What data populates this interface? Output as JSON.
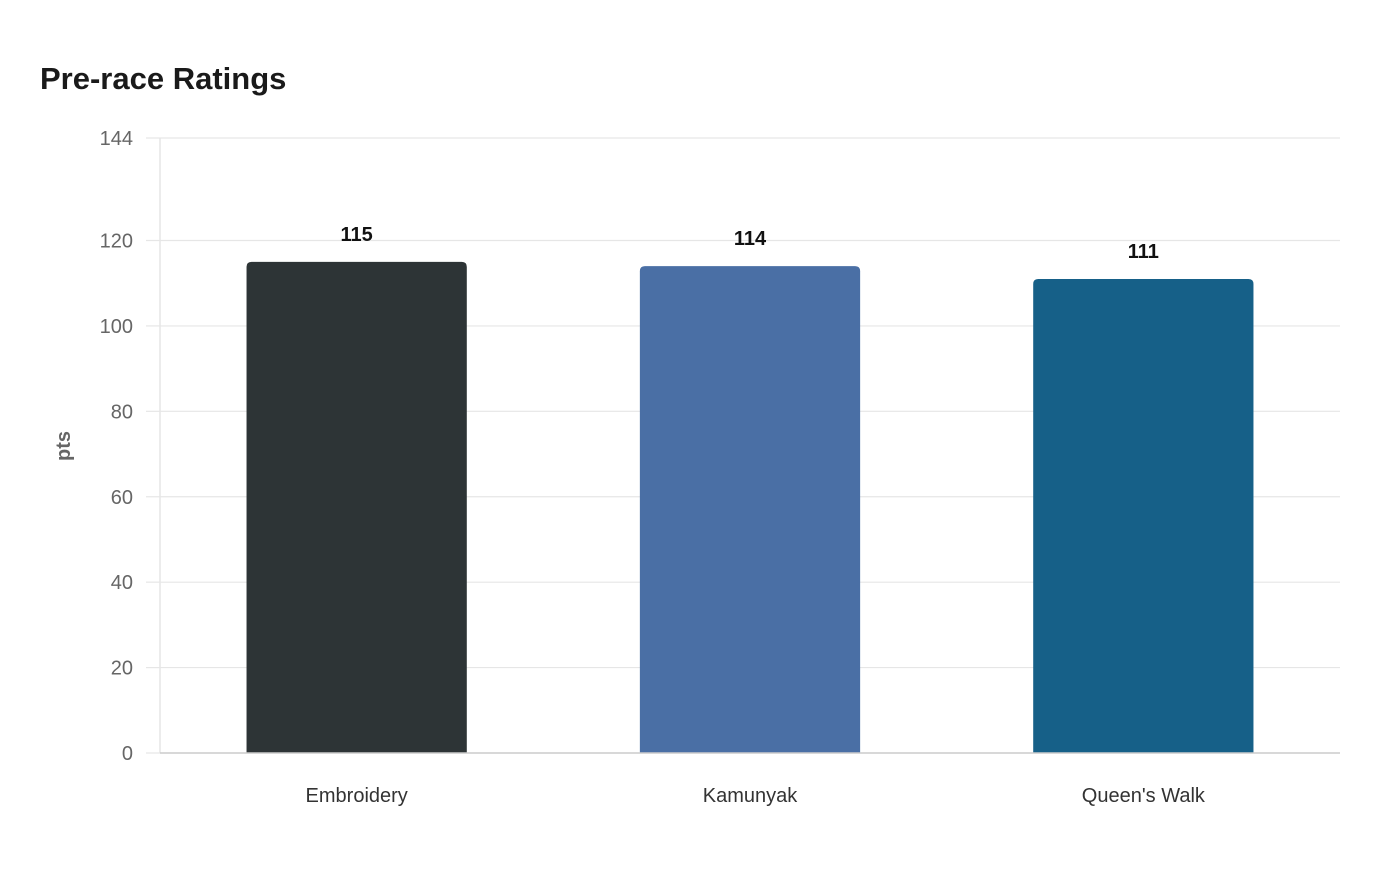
{
  "chart_data": {
    "type": "bar",
    "title": "Pre-race Ratings",
    "xlabel": "",
    "ylabel": "pts",
    "categories": [
      "Embroidery",
      "Kamunyak",
      "Queen's Walk"
    ],
    "values": [
      115,
      114,
      111
    ],
    "value_labels": [
      "115",
      "114",
      "111"
    ],
    "colors": [
      "#2d3436",
      "#4a6fa5",
      "#166088"
    ],
    "ylim": [
      0,
      144
    ],
    "yticks": [
      0,
      20,
      40,
      60,
      80,
      100,
      120,
      144
    ],
    "ytick_labels": [
      "0",
      "20",
      "40",
      "60",
      "80",
      "100",
      "120",
      "144"
    ],
    "grid": true,
    "legend": "none"
  }
}
